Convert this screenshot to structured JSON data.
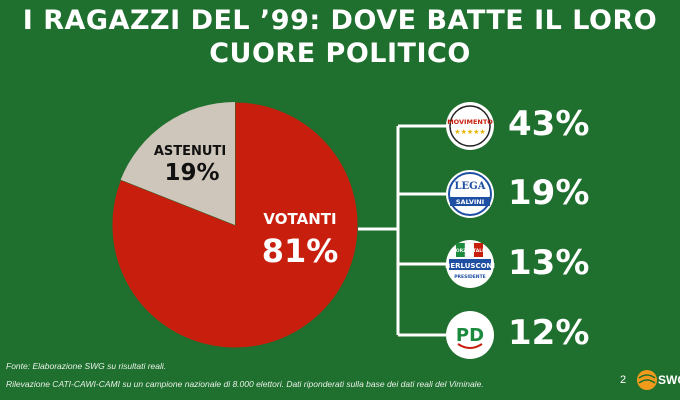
{
  "title_line1": "I RAGAZZI DEL ’99: DOVE BATTE IL LORO",
  "title_line2": "CUORE POLITICO",
  "chart_data": [
    {
      "type": "pie",
      "slices": [
        {
          "label": "VOTANTI",
          "value": 81,
          "display": "81%",
          "color": "#c81e0e"
        },
        {
          "label": "ASTENUTI",
          "value": 19,
          "display": "19%",
          "color": "#cfc6bb"
        }
      ]
    },
    {
      "type": "bar",
      "categories": [
        "MoVimento 5 Stelle",
        "Lega - Salvini Premier",
        "Forza Italia - Berlusconi Presidente",
        "PD - Partito Democratico"
      ],
      "values": [
        43,
        19,
        13,
        12
      ],
      "labels": [
        "43%",
        "19%",
        "13%",
        "12%"
      ],
      "icons": [
        "m5s-logo-icon",
        "lega-logo-icon",
        "forza-italia-logo-icon",
        "pd-logo-icon"
      ]
    }
  ],
  "logo_texts": {
    "m5s": "MOVIMENTO",
    "lega_top": "LEGA",
    "lega_band": "SALVINI",
    "fi_top": "FORZA ITALIA",
    "fi_band": "BERLUSCONI",
    "fi_bottom": "PRESIDENTE",
    "pd": "PD"
  },
  "footer": {
    "source": "Fonte: Elaborazione SWG su risultati reali.",
    "survey": "Rilevazione CATI-CAWI-CAMI su un campione nazionale di 8.000 elettori. Dati riponderati sulla base dei dati reali del Viminale."
  },
  "page_number": "2",
  "brand": "SWG",
  "colors": {
    "background": "#1f6f2e",
    "red": "#c81e0e",
    "grey": "#cfc6bb"
  }
}
